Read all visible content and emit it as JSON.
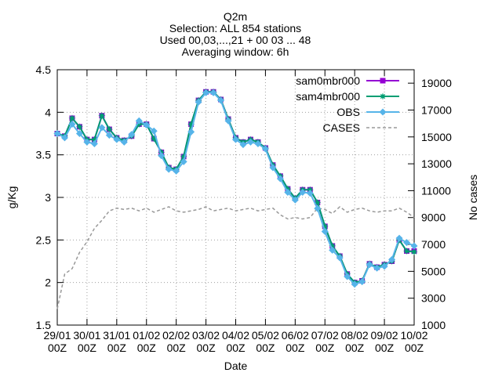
{
  "chart_data": {
    "type": "line",
    "title_lines": [
      "Q2m",
      "Selection: ALL    854 stations",
      "Used 00,03,...,21 + 00 03 ... 48",
      "Averaging window:  6h"
    ],
    "xlabel": "Date",
    "ylabel": "g/Kg",
    "y2label": "No cases",
    "ylim": [
      1.5,
      4.5
    ],
    "y2lim": [
      1000,
      20000
    ],
    "yticks": [
      "1.5",
      "2",
      "2.5",
      "3",
      "3.5",
      "4",
      "4.5"
    ],
    "y2ticks": [
      "1000",
      "3000",
      "5000",
      "7000",
      "9000",
      "11000",
      "13000",
      "15000",
      "17000",
      "19000"
    ],
    "x_tick_labels": [
      [
        "29/01",
        "00Z"
      ],
      [
        "30/01",
        "00Z"
      ],
      [
        "31/01",
        "00Z"
      ],
      [
        "01/02",
        "00Z"
      ],
      [
        "02/02",
        "00Z"
      ],
      [
        "03/02",
        "00Z"
      ],
      [
        "04/02",
        "00Z"
      ],
      [
        "05/02",
        "00Z"
      ],
      [
        "06/02",
        "00Z"
      ],
      [
        "07/02",
        "00Z"
      ],
      [
        "08/02",
        "00Z"
      ],
      [
        "09/02",
        "00Z"
      ],
      [
        "10/02",
        "00Z"
      ]
    ],
    "grid": true,
    "legend_position": "top-right",
    "x_hours_step": 6,
    "series": [
      {
        "name": "sam0mbr000",
        "axis": "y",
        "color": "#9400d3",
        "marker": "square",
        "values": [
          3.75,
          3.72,
          3.93,
          3.83,
          3.68,
          3.68,
          3.96,
          3.8,
          3.7,
          3.67,
          3.72,
          3.86,
          3.86,
          3.69,
          3.53,
          3.35,
          3.33,
          3.48,
          3.86,
          4.14,
          4.24,
          4.24,
          4.15,
          3.92,
          3.7,
          3.65,
          3.68,
          3.65,
          3.58,
          3.38,
          3.25,
          3.1,
          2.99,
          3.09,
          3.09,
          2.94,
          2.66,
          2.43,
          2.31,
          2.1,
          2.0,
          2.02,
          2.22,
          2.18,
          2.21,
          2.25,
          2.5,
          2.37,
          2.37
        ]
      },
      {
        "name": "sam4mbr000",
        "axis": "y",
        "color": "#009e73",
        "marker": "star",
        "values": [
          3.75,
          3.72,
          3.93,
          3.83,
          3.68,
          3.68,
          3.96,
          3.8,
          3.7,
          3.67,
          3.72,
          3.86,
          3.86,
          3.69,
          3.53,
          3.35,
          3.33,
          3.48,
          3.86,
          4.14,
          4.24,
          4.24,
          4.15,
          3.92,
          3.7,
          3.65,
          3.68,
          3.65,
          3.58,
          3.38,
          3.25,
          3.1,
          2.99,
          3.09,
          3.09,
          2.94,
          2.66,
          2.43,
          2.31,
          2.1,
          2.0,
          2.02,
          2.22,
          2.18,
          2.21,
          2.25,
          2.5,
          2.37,
          2.36
        ]
      },
      {
        "name": "OBS",
        "axis": "y",
        "color": "#56b4e9",
        "marker": "diamond",
        "values": [
          3.75,
          3.7,
          3.86,
          3.75,
          3.65,
          3.63,
          3.82,
          3.73,
          3.68,
          3.65,
          3.74,
          3.9,
          3.85,
          3.78,
          3.49,
          3.33,
          3.31,
          3.42,
          3.77,
          4.12,
          4.23,
          4.23,
          4.14,
          3.9,
          3.68,
          3.62,
          3.65,
          3.63,
          3.57,
          3.35,
          3.22,
          3.06,
          2.97,
          3.06,
          3.05,
          2.87,
          2.6,
          2.38,
          2.29,
          2.07,
          1.98,
          2.01,
          2.21,
          2.17,
          2.19,
          2.27,
          2.52,
          2.47,
          2.43
        ]
      },
      {
        "name": "CASES",
        "axis": "y2",
        "color": "#999999",
        "style": "dashed",
        "values": [
          2200,
          4800,
          5200,
          6400,
          7200,
          8200,
          8800,
          9500,
          9700,
          9600,
          9700,
          9500,
          9700,
          9400,
          9600,
          9800,
          9500,
          9400,
          9500,
          9600,
          9800,
          9500,
          9600,
          9700,
          9500,
          9600,
          9700,
          9500,
          9600,
          9700,
          9200,
          8900,
          9000,
          8900,
          9000,
          9700,
          9600,
          9300,
          9800,
          9400,
          9600,
          9700,
          9500,
          9400,
          9500,
          9500,
          9700,
          9400,
          9000
        ]
      }
    ]
  }
}
